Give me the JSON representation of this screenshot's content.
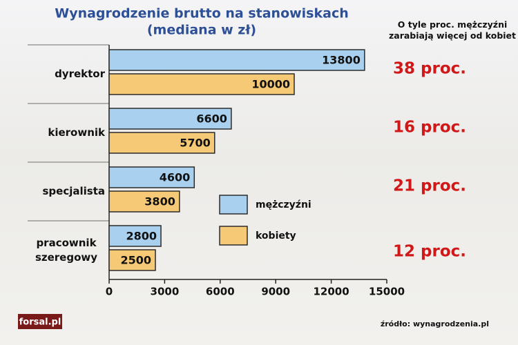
{
  "chart_data": {
    "type": "barh",
    "title": "Wynagrodzenie brutto na stanowiskach",
    "subtitle": "(mediana w zł)",
    "annotation_header": "O tyle proc. mężczyźni zarabiają więcej od kobiet",
    "categories": [
      "dyrektor",
      "kierownik",
      "specjalista",
      "pracownik szeregowy"
    ],
    "series": [
      {
        "name": "mężczyźni",
        "color": "#a9d1ef",
        "values": [
          13800,
          6600,
          4600,
          2800
        ]
      },
      {
        "name": "kobiety",
        "color": "#f6c977",
        "values": [
          10000,
          5700,
          3800,
          2500
        ]
      }
    ],
    "annotations": [
      "38 proc.",
      "16 proc.",
      "21 proc.",
      "12 proc."
    ],
    "xlim": [
      0,
      15000
    ],
    "xticks": [
      0,
      3000,
      6000,
      9000,
      12000,
      15000
    ],
    "source": "źródło: wynagrodzenia.pl",
    "logo": "forsal.pl"
  }
}
